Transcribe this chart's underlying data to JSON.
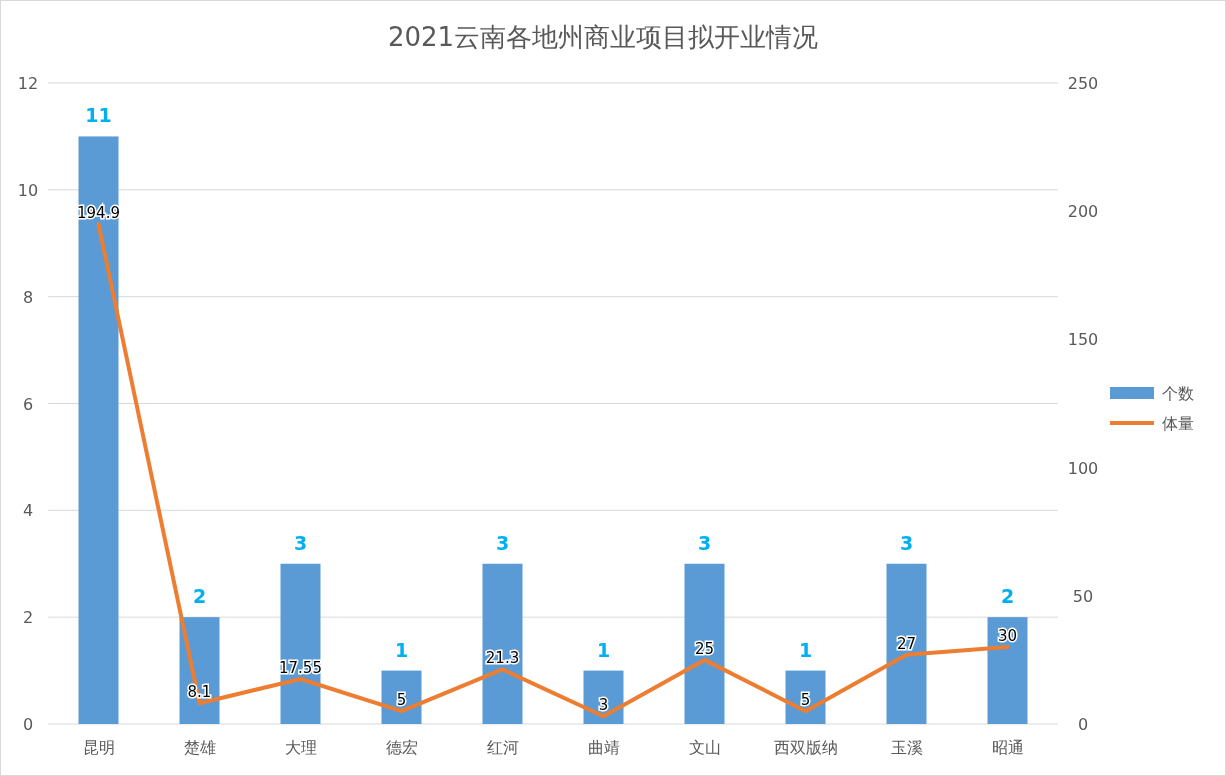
{
  "chart_data": {
    "type": "bar",
    "title": "2021云南各地州商业项目拟开业情况",
    "categories": [
      "昆明",
      "楚雄",
      "大理",
      "德宏",
      "红河",
      "曲靖",
      "文山",
      "西双版纳",
      "玉溪",
      "昭通"
    ],
    "series": [
      {
        "name": "个数",
        "color": "#5b9bd5",
        "values": [
          11,
          2,
          3,
          1,
          3,
          1,
          3,
          1,
          3,
          2
        ]
      },
      {
        "name": "体量",
        "type": "line",
        "axis": "y2",
        "color": "#ed7d31",
        "values": [
          194.9,
          8.1,
          17.55,
          5,
          21.3,
          3,
          25,
          5,
          27,
          30
        ]
      }
    ],
    "ylim": [
      0,
      12
    ],
    "yticks": [
      0,
      2,
      4,
      6,
      8,
      10,
      12
    ],
    "y2lim": [
      0,
      250
    ],
    "y2ticks": [
      0,
      50,
      100,
      150,
      200,
      250
    ],
    "grid": "y",
    "legend": "right",
    "data_labels": true
  }
}
